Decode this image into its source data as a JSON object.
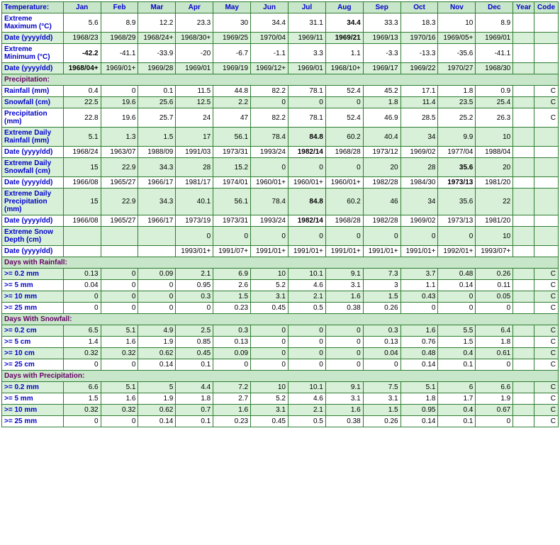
{
  "headers": {
    "temp": "Temperature:",
    "jan": "Jan",
    "feb": "Feb",
    "mar": "Mar",
    "apr": "Apr",
    "may": "May",
    "jun": "Jun",
    "jul": "Jul",
    "aug": "Aug",
    "sep": "Sep",
    "oct": "Oct",
    "nov": "Nov",
    "dec": "Dec",
    "year": "Year",
    "code": "Code"
  },
  "rows": [
    {
      "k": "emax",
      "label": "Extreme Maximum (°C)",
      "cls": "alt-white",
      "v": [
        "5.6",
        "8.9",
        "12.2",
        "23.3",
        "30",
        "34.4",
        "31.1",
        "34.4",
        "33.3",
        "18.3",
        "10",
        "8.9",
        "",
        ""
      ],
      "bold": [
        7
      ]
    },
    {
      "k": "emax_d",
      "label": "Date (yyyy/dd)",
      "cls": "alt-green",
      "v": [
        "1968/23",
        "1968/29",
        "1968/24+",
        "1968/30+",
        "1969/25",
        "1970/04",
        "1969/11",
        "1969/21",
        "1969/13",
        "1970/16",
        "1969/05+",
        "1969/01",
        "",
        ""
      ],
      "bold": [
        7
      ]
    },
    {
      "k": "emin",
      "label": "Extreme Minimum (°C)",
      "cls": "alt-white",
      "v": [
        "-42.2",
        "-41.1",
        "-33.9",
        "-20",
        "-6.7",
        "-1.1",
        "3.3",
        "1.1",
        "-3.3",
        "-13.3",
        "-35.6",
        "-41.1",
        "",
        ""
      ],
      "bold": [
        0
      ]
    },
    {
      "k": "emin_d",
      "label": "Date (yyyy/dd)",
      "cls": "alt-green",
      "v": [
        "1968/04+",
        "1969/01+",
        "1969/28",
        "1969/01",
        "1969/19",
        "1969/12+",
        "1969/01",
        "1968/10+",
        "1969/17",
        "1969/22",
        "1970/27",
        "1968/30",
        "",
        ""
      ],
      "bold": [
        0
      ]
    },
    {
      "k": "sec_precip",
      "section": "Precipitation:"
    },
    {
      "k": "rain",
      "label": "Rainfall (mm)",
      "cls": "alt-white",
      "v": [
        "0.4",
        "0",
        "0.1",
        "11.5",
        "44.8",
        "82.2",
        "78.1",
        "52.4",
        "45.2",
        "17.1",
        "1.8",
        "0.9",
        "",
        "C"
      ]
    },
    {
      "k": "snow",
      "label": "Snowfall (cm)",
      "cls": "alt-green",
      "v": [
        "22.5",
        "19.6",
        "25.6",
        "12.5",
        "2.2",
        "0",
        "0",
        "0",
        "1.8",
        "11.4",
        "23.5",
        "25.4",
        "",
        "C"
      ]
    },
    {
      "k": "precip",
      "label": "Precipitation (mm)",
      "cls": "alt-white",
      "v": [
        "22.8",
        "19.6",
        "25.7",
        "24",
        "47",
        "82.2",
        "78.1",
        "52.4",
        "46.9",
        "28.5",
        "25.2",
        "26.3",
        "",
        "C"
      ]
    },
    {
      "k": "edrain",
      "label": "Extreme Daily Rainfall (mm)",
      "cls": "alt-green",
      "v": [
        "5.1",
        "1.3",
        "1.5",
        "17",
        "56.1",
        "78.4",
        "84.8",
        "60.2",
        "40.4",
        "34",
        "9.9",
        "10",
        "",
        ""
      ],
      "bold": [
        6
      ]
    },
    {
      "k": "edrain_d",
      "label": "Date (yyyy/dd)",
      "cls": "alt-white",
      "v": [
        "1968/24",
        "1963/07",
        "1988/09",
        "1991/03",
        "1973/31",
        "1993/24",
        "1982/14",
        "1968/28",
        "1973/12",
        "1969/02",
        "1977/04",
        "1988/04",
        "",
        ""
      ],
      "bold": [
        6
      ]
    },
    {
      "k": "edsnow",
      "label": "Extreme Daily Snowfall (cm)",
      "cls": "alt-green",
      "v": [
        "15",
        "22.9",
        "34.3",
        "28",
        "15.2",
        "0",
        "0",
        "0",
        "20",
        "28",
        "35.6",
        "20",
        "",
        ""
      ],
      "bold": [
        10
      ]
    },
    {
      "k": "edsnow_d",
      "label": "Date (yyyy/dd)",
      "cls": "alt-white",
      "v": [
        "1966/08",
        "1965/27",
        "1966/17",
        "1981/17",
        "1974/01",
        "1960/01+",
        "1960/01+",
        "1960/01+",
        "1982/28",
        "1984/30",
        "1973/13",
        "1981/20",
        "",
        ""
      ],
      "bold": [
        10
      ]
    },
    {
      "k": "edprecip",
      "label": "Extreme Daily Precipitation (mm)",
      "cls": "alt-green",
      "v": [
        "15",
        "22.9",
        "34.3",
        "40.1",
        "56.1",
        "78.4",
        "84.8",
        "60.2",
        "46",
        "34",
        "35.6",
        "22",
        "",
        ""
      ],
      "bold": [
        6
      ]
    },
    {
      "k": "edprecip_d",
      "label": "Date (yyyy/dd)",
      "cls": "alt-white",
      "v": [
        "1966/08",
        "1965/27",
        "1966/17",
        "1973/19",
        "1973/31",
        "1993/24",
        "1982/14",
        "1968/28",
        "1982/28",
        "1969/02",
        "1973/13",
        "1981/20",
        "",
        ""
      ],
      "bold": [
        6
      ]
    },
    {
      "k": "esnowd",
      "label": "Extreme Snow Depth (cm)",
      "cls": "alt-green",
      "v": [
        "",
        "",
        "",
        "0",
        "0",
        "0",
        "0",
        "0",
        "0",
        "0",
        "0",
        "10",
        "",
        ""
      ]
    },
    {
      "k": "esnowd_d",
      "label": "Date (yyyy/dd)",
      "cls": "alt-white",
      "v": [
        "",
        "",
        "",
        "1993/01+",
        "1991/07+",
        "1991/01+",
        "1991/01+",
        "1991/01+",
        "1991/01+",
        "1991/01+",
        "1992/01+",
        "1993/07+",
        "",
        ""
      ]
    },
    {
      "k": "sec_dr",
      "section": "Days with Rainfall:"
    },
    {
      "k": "dr02",
      "label": ">= 0.2 mm",
      "cls": "alt-green",
      "v": [
        "0.13",
        "0",
        "0.09",
        "2.1",
        "6.9",
        "10",
        "10.1",
        "9.1",
        "7.3",
        "3.7",
        "0.48",
        "0.26",
        "",
        "C"
      ]
    },
    {
      "k": "dr5",
      "label": ">= 5 mm",
      "cls": "alt-white",
      "v": [
        "0.04",
        "0",
        "0",
        "0.95",
        "2.6",
        "5.2",
        "4.6",
        "3.1",
        "3",
        "1.1",
        "0.14",
        "0.11",
        "",
        "C"
      ]
    },
    {
      "k": "dr10",
      "label": ">= 10 mm",
      "cls": "alt-green",
      "v": [
        "0",
        "0",
        "0",
        "0.3",
        "1.5",
        "3.1",
        "2.1",
        "1.6",
        "1.5",
        "0.43",
        "0",
        "0.05",
        "",
        "C"
      ]
    },
    {
      "k": "dr25",
      "label": ">= 25 mm",
      "cls": "alt-white",
      "v": [
        "0",
        "0",
        "0",
        "0",
        "0.23",
        "0.45",
        "0.5",
        "0.38",
        "0.26",
        "0",
        "0",
        "0",
        "",
        "C"
      ]
    },
    {
      "k": "sec_ds",
      "section": "Days With Snowfall:"
    },
    {
      "k": "ds02",
      "label": ">= 0.2 cm",
      "cls": "alt-green",
      "v": [
        "6.5",
        "5.1",
        "4.9",
        "2.5",
        "0.3",
        "0",
        "0",
        "0",
        "0.3",
        "1.6",
        "5.5",
        "6.4",
        "",
        "C"
      ]
    },
    {
      "k": "ds5",
      "label": ">= 5 cm",
      "cls": "alt-white",
      "v": [
        "1.4",
        "1.6",
        "1.9",
        "0.85",
        "0.13",
        "0",
        "0",
        "0",
        "0.13",
        "0.76",
        "1.5",
        "1.8",
        "",
        "C"
      ]
    },
    {
      "k": "ds10",
      "label": ">= 10 cm",
      "cls": "alt-green",
      "v": [
        "0.32",
        "0.32",
        "0.62",
        "0.45",
        "0.09",
        "0",
        "0",
        "0",
        "0.04",
        "0.48",
        "0.4",
        "0.61",
        "",
        "C"
      ]
    },
    {
      "k": "ds25",
      "label": ">= 25 cm",
      "cls": "alt-white",
      "v": [
        "0",
        "0",
        "0.14",
        "0.1",
        "0",
        "0",
        "0",
        "0",
        "0",
        "0.14",
        "0.1",
        "0",
        "",
        "C"
      ]
    },
    {
      "k": "sec_dp",
      "section": "Days with Precipitation:"
    },
    {
      "k": "dp02",
      "label": ">= 0.2 mm",
      "cls": "alt-green",
      "v": [
        "6.6",
        "5.1",
        "5",
        "4.4",
        "7.2",
        "10",
        "10.1",
        "9.1",
        "7.5",
        "5.1",
        "6",
        "6.6",
        "",
        "C"
      ]
    },
    {
      "k": "dp5",
      "label": ">= 5 mm",
      "cls": "alt-white",
      "v": [
        "1.5",
        "1.6",
        "1.9",
        "1.8",
        "2.7",
        "5.2",
        "4.6",
        "3.1",
        "3.1",
        "1.8",
        "1.7",
        "1.9",
        "",
        "C"
      ]
    },
    {
      "k": "dp10",
      "label": ">= 10 mm",
      "cls": "alt-green",
      "v": [
        "0.32",
        "0.32",
        "0.62",
        "0.7",
        "1.6",
        "3.1",
        "2.1",
        "1.6",
        "1.5",
        "0.95",
        "0.4",
        "0.67",
        "",
        "C"
      ]
    },
    {
      "k": "dp25",
      "label": ">= 25 mm",
      "cls": "alt-white",
      "v": [
        "0",
        "0",
        "0.14",
        "0.1",
        "0.23",
        "0.45",
        "0.5",
        "0.38",
        "0.26",
        "0.14",
        "0.1",
        "0",
        "",
        "C"
      ]
    }
  ]
}
